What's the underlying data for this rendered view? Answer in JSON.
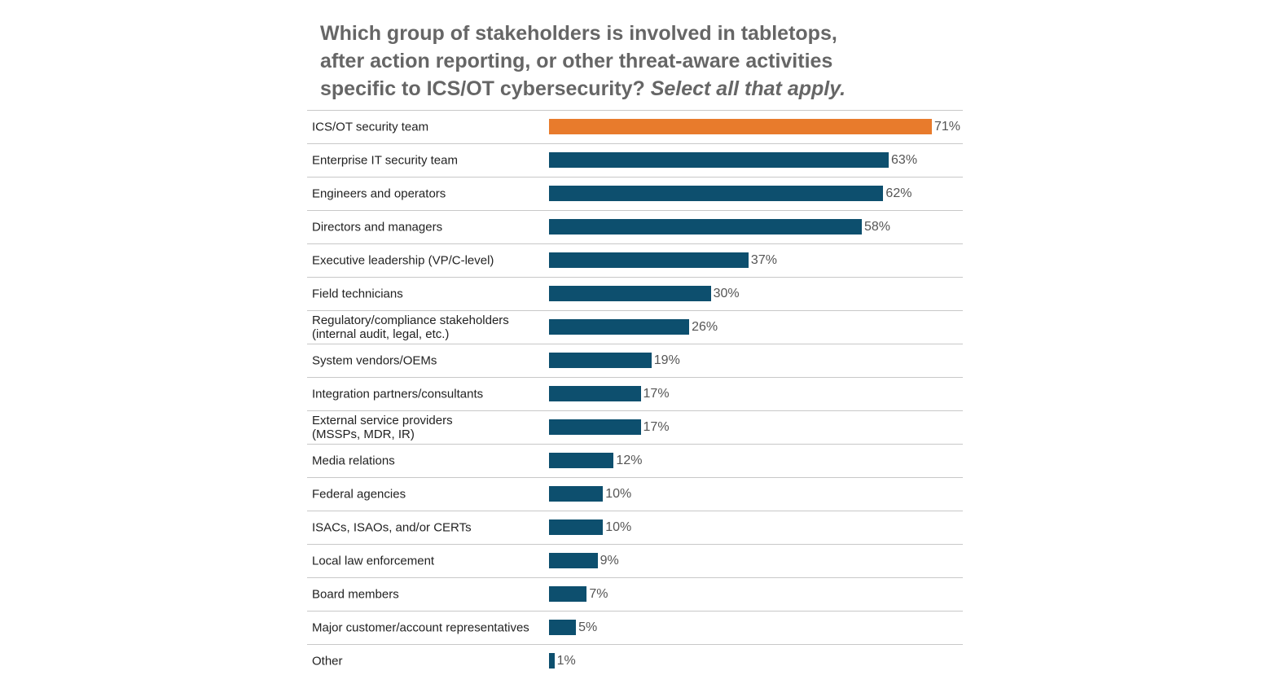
{
  "chart_data": {
    "type": "bar",
    "orientation": "horizontal",
    "title": "Which group of stakeholders is involved in tabletops, after action reporting, or other threat-aware activities specific to ICS/OT cybersecurity?",
    "subtitle": "Select all that apply.",
    "categories": [
      "ICS/OT security team",
      "Enterprise IT security team",
      "Engineers and operators",
      "Directors and managers",
      "Executive leadership (VP/C-level)",
      "Field technicians",
      "Regulatory/compliance stakeholders\n(internal audit, legal, etc.)",
      "System vendors/OEMs",
      "Integration partners/consultants",
      "External service providers\n(MSSPs, MDR, IR)",
      "Media relations",
      "Federal agencies",
      "ISACs, ISAOs, and/or CERTs",
      "Local law enforcement",
      "Board members",
      "Major customer/account representatives",
      "Other"
    ],
    "values": [
      71,
      63,
      62,
      58,
      37,
      30,
      26,
      19,
      17,
      17,
      12,
      10,
      10,
      9,
      7,
      5,
      1
    ],
    "value_labels": [
      "71%",
      "63%",
      "62%",
      "58%",
      "37%",
      "30%",
      "26%",
      "19%",
      "17%",
      "17%",
      "12%",
      "10%",
      "10%",
      "9%",
      "7%",
      "5%",
      "1%"
    ],
    "colors": [
      "#e87b2c",
      "#0d4f6e",
      "#0d4f6e",
      "#0d4f6e",
      "#0d4f6e",
      "#0d4f6e",
      "#0d4f6e",
      "#0d4f6e",
      "#0d4f6e",
      "#0d4f6e",
      "#0d4f6e",
      "#0d4f6e",
      "#0d4f6e",
      "#0d4f6e",
      "#0d4f6e",
      "#0d4f6e",
      "#0d4f6e"
    ]
  }
}
